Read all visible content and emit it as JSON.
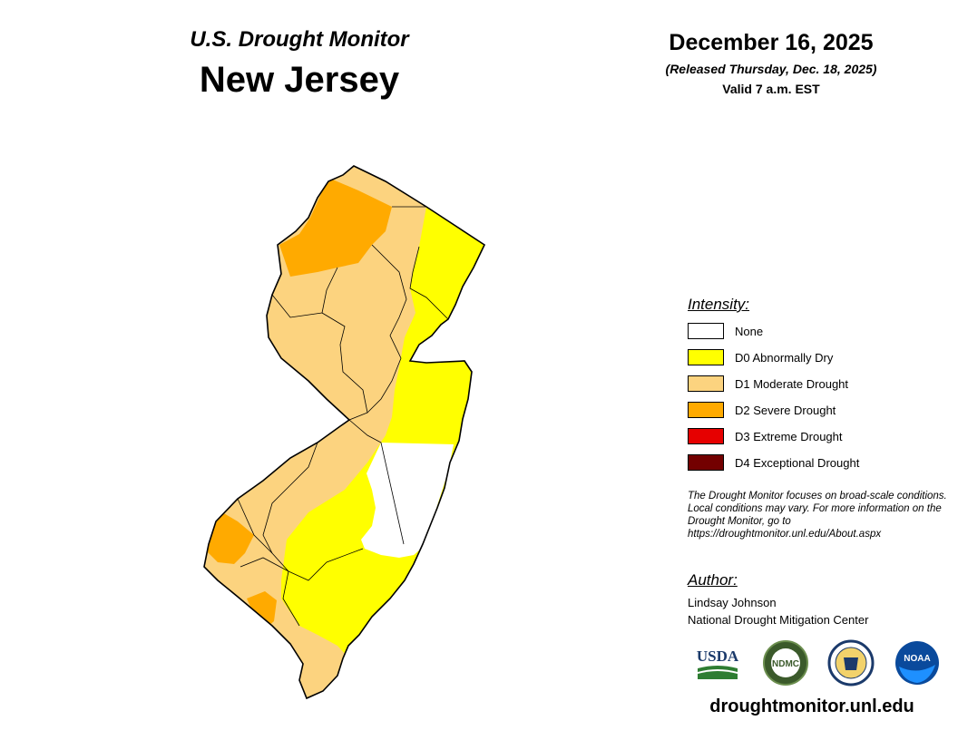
{
  "header": {
    "subtitle": "U.S. Drought Monitor",
    "title": "New Jersey",
    "date": "December 16, 2025",
    "released": "(Released Thursday, Dec. 18, 2025)",
    "valid": "Valid 7 a.m. EST"
  },
  "legend": {
    "title": "Intensity:",
    "items": [
      {
        "label": "None",
        "color": "#ffffff"
      },
      {
        "label": "D0 Abnormally Dry",
        "color": "#ffff00"
      },
      {
        "label": "D1 Moderate Drought",
        "color": "#fcd37f"
      },
      {
        "label": "D2 Severe Drought",
        "color": "#ffaa00"
      },
      {
        "label": "D3 Extreme Drought",
        "color": "#e60000"
      },
      {
        "label": "D4 Exceptional Drought",
        "color": "#730000"
      }
    ]
  },
  "note": "The Drought Monitor focuses on broad-scale conditions. Local conditions may vary. For more information on the Drought Monitor, go to https://droughtmonitor.unl.edu/About.aspx",
  "author": {
    "title": "Author:",
    "name": "Lindsay Johnson",
    "org": "National Drought Mitigation Center"
  },
  "logos": [
    {
      "name": "usda-logo",
      "text": "USDA"
    },
    {
      "name": "ndmc-logo",
      "text": "NDMC"
    },
    {
      "name": "doc-seal-logo",
      "text": ""
    },
    {
      "name": "noaa-logo",
      "text": "NOAA"
    }
  ],
  "footer": {
    "url": "droughtmonitor.unl.edu"
  }
}
